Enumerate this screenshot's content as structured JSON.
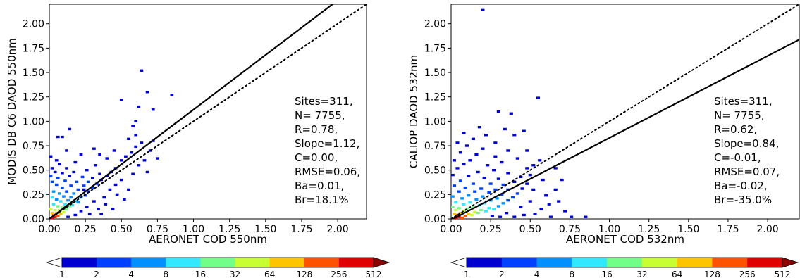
{
  "chart_data": [
    {
      "type": "heatmap",
      "subtype": "2d-density-scatter",
      "xlabel": "AERONET COD 550nm",
      "ylabel": "MODIS DB C6 DAOD 550nm",
      "xlim": [
        0,
        2.2
      ],
      "ylim": [
        0,
        2.2
      ],
      "x_ticks": [
        "0.00",
        "0.25",
        "0.50",
        "0.75",
        "1.00",
        "1.25",
        "1.50",
        "1.75",
        "2.00"
      ],
      "y_ticks": [
        "0.00",
        "0.25",
        "0.50",
        "0.75",
        "1.00",
        "1.25",
        "1.50",
        "1.75",
        "2.00"
      ],
      "grid": false,
      "lines": [
        {
          "kind": "regression",
          "style": "solid",
          "slope": 1.12,
          "intercept": 0.0
        },
        {
          "kind": "one-to-one",
          "style": "dotted",
          "slope": 1.0,
          "intercept": 0.0
        }
      ],
      "stats": [
        "Sites=311,",
        "N= 7755,",
        "R=0.78,",
        "Slope=1.12,",
        "C=0.00,",
        "RMSE=0.06,",
        "Ba=0.01,",
        "Br=18.1%"
      ],
      "points": [
        [
          0.02,
          0.01,
          9
        ],
        [
          0.04,
          0.02,
          9
        ],
        [
          0.03,
          0.04,
          8
        ],
        [
          0.06,
          0.03,
          8
        ],
        [
          0.05,
          0.06,
          7
        ],
        [
          0.08,
          0.05,
          7
        ],
        [
          0.02,
          0.06,
          7
        ],
        [
          0.07,
          0.09,
          6
        ],
        [
          0.1,
          0.07,
          6
        ],
        [
          0.04,
          0.09,
          6
        ],
        [
          0.12,
          0.1,
          5
        ],
        [
          0.09,
          0.12,
          5
        ],
        [
          0.01,
          0.1,
          6
        ],
        [
          0.14,
          0.13,
          5
        ],
        [
          0.11,
          0.15,
          4
        ],
        [
          0.06,
          0.13,
          5
        ],
        [
          0.16,
          0.14,
          4
        ],
        [
          0.03,
          0.15,
          4
        ],
        [
          0.18,
          0.18,
          4
        ],
        [
          0.13,
          0.19,
          3
        ],
        [
          0.08,
          0.18,
          4
        ],
        [
          0.2,
          0.17,
          3
        ],
        [
          0.05,
          0.2,
          3
        ],
        [
          0.15,
          0.22,
          3
        ],
        [
          0.22,
          0.22,
          3
        ],
        [
          0.1,
          0.23,
          3
        ],
        [
          0.02,
          0.22,
          4
        ],
        [
          0.25,
          0.24,
          2
        ],
        [
          0.17,
          0.26,
          3
        ],
        [
          0.07,
          0.26,
          3
        ],
        [
          0.27,
          0.28,
          2
        ],
        [
          0.12,
          0.28,
          2
        ],
        [
          0.03,
          0.28,
          3
        ],
        [
          0.2,
          0.3,
          2
        ],
        [
          0.3,
          0.32,
          2
        ],
        [
          0.24,
          0.34,
          2
        ],
        [
          0.09,
          0.32,
          2
        ],
        [
          0.15,
          0.34,
          2
        ],
        [
          0.33,
          0.36,
          2
        ],
        [
          0.05,
          0.35,
          2
        ],
        [
          0.27,
          0.38,
          2
        ],
        [
          0.02,
          0.38,
          2
        ],
        [
          0.36,
          0.4,
          1
        ],
        [
          0.19,
          0.38,
          2
        ],
        [
          0.11,
          0.39,
          2
        ],
        [
          0.3,
          0.42,
          1
        ],
        [
          0.06,
          0.42,
          2
        ],
        [
          0.4,
          0.44,
          1
        ],
        [
          0.23,
          0.43,
          2
        ],
        [
          0.14,
          0.44,
          1
        ],
        [
          0.01,
          0.44,
          2
        ],
        [
          0.35,
          0.46,
          1
        ],
        [
          0.09,
          0.47,
          1
        ],
        [
          0.04,
          0.48,
          1
        ],
        [
          0.17,
          0.48,
          1
        ],
        [
          0.26,
          0.5,
          1
        ],
        [
          0.43,
          0.48,
          1
        ],
        [
          0.02,
          0.52,
          1
        ],
        [
          0.12,
          0.52,
          1
        ],
        [
          0.32,
          0.55,
          1
        ],
        [
          0.07,
          0.56,
          1
        ],
        [
          0.05,
          0.6,
          1
        ],
        [
          0.01,
          0.64,
          1
        ],
        [
          0.18,
          0.58,
          1
        ],
        [
          0.46,
          0.52,
          1
        ],
        [
          0.5,
          0.6,
          1
        ],
        [
          0.47,
          0.25,
          1
        ],
        [
          0.38,
          0.22,
          1
        ],
        [
          0.55,
          0.3,
          1
        ],
        [
          0.42,
          0.3,
          1
        ],
        [
          0.31,
          0.18,
          1
        ],
        [
          0.26,
          0.12,
          1
        ],
        [
          0.34,
          0.1,
          1
        ],
        [
          0.28,
          0.05,
          1
        ],
        [
          0.22,
          0.08,
          1
        ],
        [
          0.18,
          0.04,
          1
        ],
        [
          0.39,
          0.15,
          1
        ],
        [
          0.5,
          0.4,
          1
        ],
        [
          0.58,
          0.46,
          1
        ],
        [
          0.62,
          0.55,
          1
        ],
        [
          0.66,
          0.6,
          1
        ],
        [
          0.7,
          0.7,
          1
        ],
        [
          0.72,
          0.8,
          1
        ],
        [
          0.57,
          0.68,
          1
        ],
        [
          0.53,
          0.64,
          1
        ],
        [
          0.6,
          0.74,
          1
        ],
        [
          0.75,
          0.62,
          1
        ],
        [
          0.68,
          0.48,
          1
        ],
        [
          0.45,
          0.7,
          1
        ],
        [
          0.4,
          0.62,
          1
        ],
        [
          0.35,
          0.66,
          1
        ],
        [
          0.31,
          0.72,
          1
        ],
        [
          0.22,
          0.66,
          1
        ],
        [
          0.12,
          0.7,
          1
        ],
        [
          0.06,
          0.84,
          1
        ],
        [
          0.09,
          0.84,
          1
        ],
        [
          0.14,
          0.92,
          1
        ],
        [
          0.5,
          1.22,
          1
        ],
        [
          0.64,
          1.52,
          1
        ],
        [
          0.68,
          1.3,
          1
        ],
        [
          0.85,
          1.27,
          1
        ],
        [
          0.62,
          1.15,
          1
        ],
        [
          0.72,
          1.12,
          1
        ],
        [
          0.58,
          0.95,
          1
        ],
        [
          0.6,
          0.86,
          1
        ],
        [
          0.55,
          0.82,
          1
        ],
        [
          0.64,
          0.78,
          1
        ],
        [
          0.6,
          1.0,
          1
        ],
        [
          0.46,
          0.35,
          1
        ],
        [
          0.52,
          0.2,
          1
        ],
        [
          0.44,
          0.1,
          1
        ],
        [
          0.36,
          0.05,
          1
        ],
        [
          0.13,
          0.02,
          1
        ],
        [
          0.24,
          0.3,
          1
        ]
      ]
    },
    {
      "type": "heatmap",
      "subtype": "2d-density-scatter",
      "xlabel": "AERONET COD 532nm",
      "ylabel": "CALIOP DAOD 532nm",
      "xlim": [
        0,
        2.2
      ],
      "ylim": [
        0,
        2.2
      ],
      "x_ticks": [
        "0.00",
        "0.25",
        "0.50",
        "0.75",
        "1.00",
        "1.25",
        "1.50",
        "1.75",
        "2.00"
      ],
      "y_ticks": [
        "0.00",
        "0.25",
        "0.50",
        "0.75",
        "1.00",
        "1.25",
        "1.50",
        "1.75",
        "2.00"
      ],
      "grid": false,
      "lines": [
        {
          "kind": "regression",
          "style": "solid",
          "slope": 0.84,
          "intercept": -0.01
        },
        {
          "kind": "one-to-one",
          "style": "dotted",
          "slope": 1.0,
          "intercept": 0.0
        }
      ],
      "stats": [
        "Sites=311,",
        "N= 7755,",
        "R=0.62,",
        "Slope=0.84,",
        "C=-0.01,",
        "RMSE=0.07,",
        "Ba=-0.02,",
        "Br=-35.0%"
      ],
      "points": [
        [
          0.03,
          0.01,
          9
        ],
        [
          0.05,
          0.02,
          9
        ],
        [
          0.07,
          0.01,
          8
        ],
        [
          0.04,
          0.04,
          8
        ],
        [
          0.09,
          0.03,
          8
        ],
        [
          0.02,
          0.05,
          7
        ],
        [
          0.11,
          0.05,
          7
        ],
        [
          0.06,
          0.06,
          7
        ],
        [
          0.13,
          0.04,
          6
        ],
        [
          0.08,
          0.08,
          6
        ],
        [
          0.15,
          0.07,
          6
        ],
        [
          0.03,
          0.09,
          6
        ],
        [
          0.17,
          0.06,
          5
        ],
        [
          0.1,
          0.1,
          5
        ],
        [
          0.19,
          0.09,
          5
        ],
        [
          0.05,
          0.11,
          5
        ],
        [
          0.14,
          0.12,
          5
        ],
        [
          0.22,
          0.08,
          4
        ],
        [
          0.01,
          0.12,
          5
        ],
        [
          0.24,
          0.11,
          4
        ],
        [
          0.18,
          0.14,
          4
        ],
        [
          0.08,
          0.15,
          4
        ],
        [
          0.27,
          0.1,
          4
        ],
        [
          0.12,
          0.17,
          4
        ],
        [
          0.21,
          0.16,
          4
        ],
        [
          0.3,
          0.13,
          3
        ],
        [
          0.03,
          0.17,
          4
        ],
        [
          0.25,
          0.19,
          3
        ],
        [
          0.16,
          0.2,
          3
        ],
        [
          0.33,
          0.16,
          3
        ],
        [
          0.07,
          0.21,
          3
        ],
        [
          0.29,
          0.21,
          3
        ],
        [
          0.2,
          0.23,
          3
        ],
        [
          0.36,
          0.19,
          2
        ],
        [
          0.11,
          0.24,
          3
        ],
        [
          0.01,
          0.23,
          3
        ],
        [
          0.32,
          0.25,
          2
        ],
        [
          0.24,
          0.27,
          2
        ],
        [
          0.39,
          0.22,
          2
        ],
        [
          0.15,
          0.28,
          2
        ],
        [
          0.05,
          0.28,
          2
        ],
        [
          0.28,
          0.3,
          2
        ],
        [
          0.42,
          0.26,
          2
        ],
        [
          0.36,
          0.3,
          2
        ],
        [
          0.19,
          0.31,
          2
        ],
        [
          0.09,
          0.32,
          2
        ],
        [
          0.45,
          0.31,
          1
        ],
        [
          0.33,
          0.35,
          2
        ],
        [
          0.02,
          0.34,
          2
        ],
        [
          0.25,
          0.36,
          2
        ],
        [
          0.14,
          0.36,
          2
        ],
        [
          0.4,
          0.38,
          1
        ],
        [
          0.48,
          0.36,
          1
        ],
        [
          0.06,
          0.39,
          2
        ],
        [
          0.3,
          0.41,
          1
        ],
        [
          0.21,
          0.42,
          1
        ],
        [
          0.11,
          0.44,
          1
        ],
        [
          0.44,
          0.43,
          1
        ],
        [
          0.01,
          0.45,
          1
        ],
        [
          0.36,
          0.47,
          1
        ],
        [
          0.17,
          0.48,
          1
        ],
        [
          0.27,
          0.5,
          1
        ],
        [
          0.04,
          0.52,
          1
        ],
        [
          0.5,
          0.45,
          1
        ],
        [
          0.08,
          0.56,
          1
        ],
        [
          0.23,
          0.55,
          1
        ],
        [
          0.12,
          0.6,
          1
        ],
        [
          0.02,
          0.6,
          1
        ],
        [
          0.32,
          0.58,
          1
        ],
        [
          0.06,
          0.68,
          1
        ],
        [
          0.16,
          0.66,
          1
        ],
        [
          0.28,
          0.64,
          1
        ],
        [
          0.1,
          0.75,
          1
        ],
        [
          0.2,
          0.72,
          1
        ],
        [
          0.04,
          0.78,
          1
        ],
        [
          0.14,
          0.82,
          1
        ],
        [
          0.22,
          0.86,
          1
        ],
        [
          0.08,
          0.88,
          1
        ],
        [
          0.18,
          0.94,
          1
        ],
        [
          0.28,
          0.78,
          1
        ],
        [
          0.36,
          0.7,
          1
        ],
        [
          0.42,
          0.62,
          1
        ],
        [
          0.52,
          0.55,
          1
        ],
        [
          0.48,
          0.7,
          1
        ],
        [
          0.4,
          0.86,
          1
        ],
        [
          0.46,
          0.9,
          1
        ],
        [
          0.34,
          0.92,
          1
        ],
        [
          0.3,
          1.1,
          1
        ],
        [
          0.38,
          1.08,
          1
        ],
        [
          0.55,
          1.24,
          1
        ],
        [
          0.2,
          2.14,
          1
        ],
        [
          0.52,
          0.3,
          1
        ],
        [
          0.58,
          0.4,
          1
        ],
        [
          0.6,
          0.24,
          1
        ],
        [
          0.66,
          0.3,
          1
        ],
        [
          0.7,
          0.4,
          1
        ],
        [
          0.62,
          0.15,
          1
        ],
        [
          0.57,
          0.1,
          1
        ],
        [
          0.68,
          0.18,
          1
        ],
        [
          0.72,
          0.08,
          1
        ],
        [
          0.76,
          0.02,
          1
        ],
        [
          0.85,
          0.02,
          1
        ],
        [
          0.63,
          0.02,
          1
        ],
        [
          0.53,
          0.05,
          1
        ],
        [
          0.46,
          0.04,
          1
        ],
        [
          0.4,
          0.02,
          1
        ],
        [
          0.35,
          0.06,
          1
        ],
        [
          0.44,
          0.12,
          1
        ],
        [
          0.5,
          0.18,
          1
        ],
        [
          0.26,
          0.03,
          1
        ],
        [
          0.31,
          0.02,
          1
        ],
        [
          0.56,
          0.6,
          1
        ],
        [
          0.48,
          0.52,
          1
        ],
        [
          0.66,
          0.52,
          1
        ]
      ]
    }
  ],
  "colorbar": {
    "labels": [
      "1",
      "2",
      "4",
      "8",
      "16",
      "32",
      "64",
      "128",
      "256",
      "512"
    ],
    "colors": [
      "#00007f",
      "#0000d0",
      "#0040ff",
      "#0090ff",
      "#30e8ff",
      "#70ff87",
      "#c8ff30",
      "#ffc400",
      "#ff5200",
      "#e00000",
      "#8c0000"
    ],
    "extend": "both"
  }
}
